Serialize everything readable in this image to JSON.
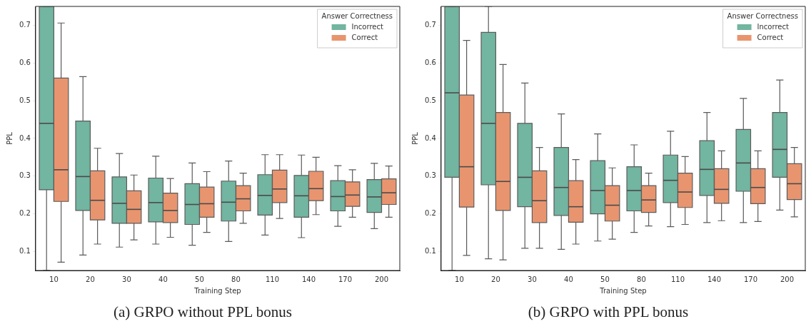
{
  "chart_data": [
    {
      "type": "box",
      "xlabel": "Training Step",
      "ylabel": "PPL",
      "legend_title": "Answer Correctness",
      "legend": "top right",
      "grid": false,
      "categories": [
        "10",
        "20",
        "30",
        "40",
        "50",
        "80",
        "110",
        "140",
        "170",
        "200"
      ],
      "ylim": [
        0.05,
        0.75
      ],
      "yticks": [
        0.1,
        0.2,
        0.3,
        0.4,
        0.5,
        0.6,
        0.7
      ],
      "series": [
        {
          "name": "Incorrect",
          "color": "#72b5a0",
          "boxes": [
            {
              "low": 0.05,
              "q1": 0.264,
              "median": 0.44,
              "q3": 0.75,
              "high": 0.75
            },
            {
              "low": 0.091,
              "q1": 0.209,
              "median": 0.299,
              "q3": 0.446,
              "high": 0.564
            },
            {
              "low": 0.112,
              "q1": 0.175,
              "median": 0.228,
              "q3": 0.298,
              "high": 0.36
            },
            {
              "low": 0.12,
              "q1": 0.179,
              "median": 0.23,
              "q3": 0.295,
              "high": 0.353
            },
            {
              "low": 0.117,
              "q1": 0.172,
              "median": 0.225,
              "q3": 0.28,
              "high": 0.335
            },
            {
              "low": 0.127,
              "q1": 0.181,
              "median": 0.231,
              "q3": 0.287,
              "high": 0.34
            },
            {
              "low": 0.144,
              "q1": 0.197,
              "median": 0.249,
              "q3": 0.304,
              "high": 0.357
            },
            {
              "low": 0.137,
              "q1": 0.191,
              "median": 0.248,
              "q3": 0.302,
              "high": 0.356
            },
            {
              "low": 0.167,
              "q1": 0.208,
              "median": 0.246,
              "q3": 0.288,
              "high": 0.328
            },
            {
              "low": 0.161,
              "q1": 0.204,
              "median": 0.245,
              "q3": 0.291,
              "high": 0.334
            }
          ]
        },
        {
          "name": "Correct",
          "color": "#e8956f",
          "boxes": [
            {
              "low": 0.072,
              "q1": 0.233,
              "median": 0.317,
              "q3": 0.56,
              "high": 0.706
            },
            {
              "low": 0.12,
              "q1": 0.184,
              "median": 0.236,
              "q3": 0.314,
              "high": 0.374
            },
            {
              "low": 0.131,
              "q1": 0.175,
              "median": 0.212,
              "q3": 0.261,
              "high": 0.303
            },
            {
              "low": 0.138,
              "q1": 0.177,
              "median": 0.209,
              "q3": 0.255,
              "high": 0.294
            },
            {
              "low": 0.151,
              "q1": 0.191,
              "median": 0.227,
              "q3": 0.271,
              "high": 0.312
            },
            {
              "low": 0.175,
              "q1": 0.208,
              "median": 0.24,
              "q3": 0.275,
              "high": 0.308
            },
            {
              "low": 0.188,
              "q1": 0.23,
              "median": 0.266,
              "q3": 0.316,
              "high": 0.357
            },
            {
              "low": 0.198,
              "q1": 0.235,
              "median": 0.267,
              "q3": 0.313,
              "high": 0.35
            },
            {
              "low": 0.191,
              "q1": 0.22,
              "median": 0.25,
              "q3": 0.285,
              "high": 0.317
            },
            {
              "low": 0.191,
              "q1": 0.225,
              "median": 0.256,
              "q3": 0.293,
              "high": 0.327
            }
          ]
        }
      ],
      "annotations": [
        "(a) GRPO without PPL bonus"
      ]
    },
    {
      "type": "box",
      "xlabel": "Training Step",
      "ylabel": "PPL",
      "legend_title": "Answer Correctness",
      "legend": "top right",
      "grid": false,
      "categories": [
        "10",
        "20",
        "30",
        "40",
        "50",
        "80",
        "110",
        "140",
        "170",
        "200"
      ],
      "ylim": [
        0.05,
        0.75
      ],
      "yticks": [
        0.1,
        0.2,
        0.3,
        0.4,
        0.5,
        0.6,
        0.7
      ],
      "series": [
        {
          "name": "Incorrect",
          "color": "#72b5a0",
          "boxes": [
            {
              "low": 0.05,
              "q1": 0.297,
              "median": 0.521,
              "q3": 0.75,
              "high": 0.75
            },
            {
              "low": 0.081,
              "q1": 0.277,
              "median": 0.44,
              "q3": 0.681,
              "high": 0.75
            },
            {
              "low": 0.109,
              "q1": 0.219,
              "median": 0.297,
              "q3": 0.44,
              "high": 0.547
            },
            {
              "low": 0.106,
              "q1": 0.196,
              "median": 0.27,
              "q3": 0.376,
              "high": 0.465
            },
            {
              "low": 0.128,
              "q1": 0.2,
              "median": 0.262,
              "q3": 0.341,
              "high": 0.412
            },
            {
              "low": 0.151,
              "q1": 0.208,
              "median": 0.262,
              "q3": 0.325,
              "high": 0.383
            },
            {
              "low": 0.166,
              "q1": 0.23,
              "median": 0.289,
              "q3": 0.356,
              "high": 0.419
            },
            {
              "low": 0.177,
              "q1": 0.249,
              "median": 0.318,
              "q3": 0.394,
              "high": 0.469
            },
            {
              "low": 0.177,
              "q1": 0.26,
              "median": 0.335,
              "q3": 0.424,
              "high": 0.506
            },
            {
              "low": 0.21,
              "q1": 0.297,
              "median": 0.371,
              "q3": 0.469,
              "high": 0.555
            }
          ]
        },
        {
          "name": "Correct",
          "color": "#e8956f",
          "boxes": [
            {
              "low": 0.09,
              "q1": 0.218,
              "median": 0.325,
              "q3": 0.515,
              "high": 0.66
            },
            {
              "low": 0.078,
              "q1": 0.209,
              "median": 0.286,
              "q3": 0.469,
              "high": 0.596
            },
            {
              "low": 0.109,
              "q1": 0.177,
              "median": 0.235,
              "q3": 0.314,
              "high": 0.376
            },
            {
              "low": 0.12,
              "q1": 0.178,
              "median": 0.219,
              "q3": 0.288,
              "high": 0.344
            },
            {
              "low": 0.133,
              "q1": 0.181,
              "median": 0.223,
              "q3": 0.275,
              "high": 0.322
            },
            {
              "low": 0.168,
              "q1": 0.204,
              "median": 0.237,
              "q3": 0.275,
              "high": 0.308
            },
            {
              "low": 0.172,
              "q1": 0.217,
              "median": 0.258,
              "q3": 0.308,
              "high": 0.352
            },
            {
              "low": 0.182,
              "q1": 0.228,
              "median": 0.265,
              "q3": 0.32,
              "high": 0.367
            },
            {
              "low": 0.18,
              "q1": 0.227,
              "median": 0.27,
              "q3": 0.32,
              "high": 0.367
            },
            {
              "low": 0.192,
              "q1": 0.238,
              "median": 0.28,
              "q3": 0.333,
              "high": 0.376
            }
          ]
        }
      ],
      "annotations": [
        "(b) GRPO with PPL bonus"
      ]
    }
  ]
}
